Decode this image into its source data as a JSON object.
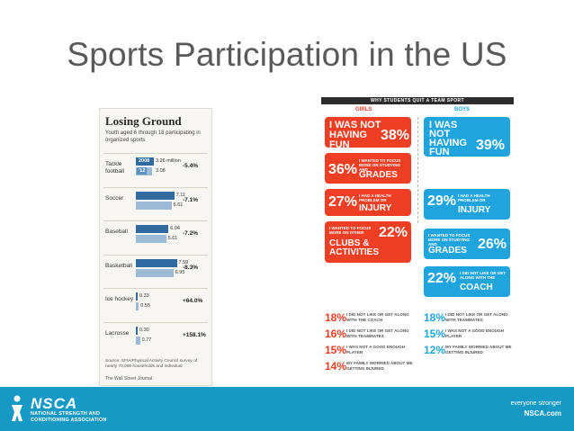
{
  "slide": {
    "title": "Sports Participation in the US"
  },
  "wsj_chart": {
    "title": "Losing Ground",
    "subtitle": "Youth aged 6 through 18 participating in organized sports",
    "legend_2008": "2008",
    "legend_2012": "'12",
    "first_value_label": "3.26 million",
    "source": "Source: SFIA/Physical Activity Council survey of nearly 70,000 households and individual",
    "credit": "The Wall Street Journal",
    "colors": {
      "y2008": "#2f6aa1",
      "y2012": "#9cbad6"
    }
  },
  "chart_data": {
    "type": "bar",
    "title": "Losing Ground",
    "subtitle": "Youth aged 6 through 18 participating in organized sports",
    "categories": [
      "Tackle football",
      "Soccer",
      "Baseball",
      "Basketball",
      "Ice hockey",
      "Lacrosse"
    ],
    "series": [
      {
        "name": "2008",
        "values": [
          3.26,
          7.11,
          6.04,
          7.59,
          0.33,
          0.3
        ]
      },
      {
        "name": "'12",
        "values": [
          3.08,
          6.61,
          5.61,
          6.95,
          0.55,
          0.77
        ]
      }
    ],
    "value_labels_2008": [
      "3.26 million",
      "7.11",
      "6.04",
      "7.59",
      "0.33",
      "0.30"
    ],
    "value_labels_2012": [
      "3.08",
      "6.61",
      "5.61",
      "6.95",
      "0.55",
      "0.77"
    ],
    "changes": [
      "-5.4%",
      "-7.1%",
      "-7.2%",
      "-8.3%",
      "+64.0%",
      "+158.1%"
    ],
    "xlim": [
      0,
      8
    ],
    "orientation": "horizontal",
    "grid": false
  },
  "infographic": {
    "banner": "WHY STUDENTS QUIT A TEAM SPORT",
    "girls_label": "GIRLS",
    "boys_label": "BOYS",
    "colors": {
      "girls": "#ee3e23",
      "boys": "#1fa4dd"
    },
    "girls_bubbles": [
      {
        "big": "I WAS NOT HAVING FUN",
        "pct": "38%"
      },
      {
        "pct": "36%",
        "small": "I WANTED TO FOCUS MORE ON STUDYING AND",
        "big": "GRADES"
      },
      {
        "pct": "27%",
        "small": "I HAD A HEALTH PROBLEM OR",
        "big": "INJURY"
      },
      {
        "small": "I WANTED TO FOCUS MORE ON OTHER",
        "big": "CLUBS & ACTIVITIES",
        "pct": "22%"
      }
    ],
    "boys_bubbles": [
      {
        "big": "I WAS NOT HAVING FUN",
        "pct": "39%"
      },
      {
        "pct": "29%",
        "small": "I HAD A HEALTH PROBLEM OR",
        "big": "INJURY"
      },
      {
        "small": "I WANTED TO FOCUS MORE ON STUDYING AND",
        "big": "GRADES",
        "pct": "26%"
      },
      {
        "pct": "22%",
        "small": "I DID NOT LIKE OR GET ALONG WITH THE",
        "big": "COACH"
      }
    ],
    "girls_stats": [
      {
        "pct": "18%",
        "text": "I DID NOT LIKE OR GET ALONG WITH THE COACH"
      },
      {
        "pct": "16%",
        "text": "I DID NOT LIKE OR GET ALONG WITH TEAMMATES"
      },
      {
        "pct": "15%",
        "text": "I WAS NOT A GOOD ENOUGH PLAYER"
      },
      {
        "pct": "14%",
        "text": "MY FAMILY WORRIED ABOUT ME GETTING INJURED"
      }
    ],
    "boys_stats": [
      {
        "pct": "18%",
        "text": "I DID NOT LIKE OR GET ALONG WITH TEAMMATES"
      },
      {
        "pct": "15%",
        "text": "I WAS NOT A GOOD ENOUGH PLAYER"
      },
      {
        "pct": "12%",
        "text": "MY FAMILY WORRIED ABOUT ME GETTING INJURED"
      }
    ]
  },
  "footer": {
    "brand": "NSCA",
    "association_line1": "NATIONAL STRENGTH AND",
    "association_line2": "CONDITIONING ASSOCIATION",
    "tagline": "everyone stronger",
    "url": "NSCA.com",
    "logo_icon": "nsca-figure-icon",
    "color": "#1699c4"
  }
}
